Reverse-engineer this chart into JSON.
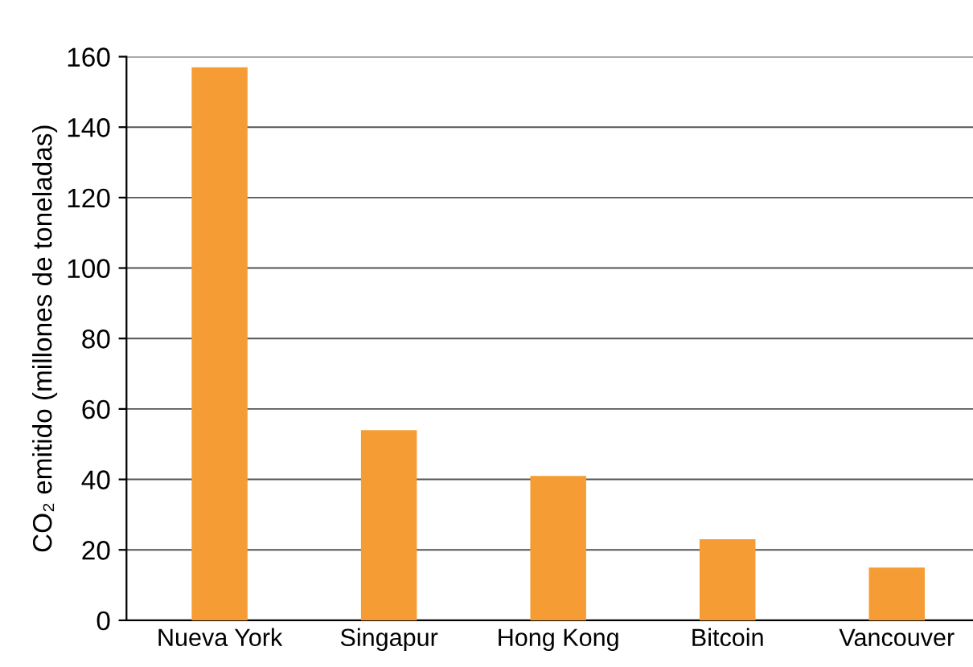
{
  "chart_data": {
    "type": "bar",
    "ylabel": "CO₂ emitido (millones de toneladas)",
    "categories": [
      "Nueva York",
      "Singapur",
      "Hong Kong",
      "Bitcoin",
      "Vancouver"
    ],
    "values": [
      157,
      54,
      41,
      23,
      15
    ],
    "color": "#f59d34",
    "ylim": [
      0,
      160
    ],
    "yticks": [
      0,
      20,
      40,
      60,
      80,
      100,
      120,
      140,
      160
    ],
    "grid": "y"
  }
}
